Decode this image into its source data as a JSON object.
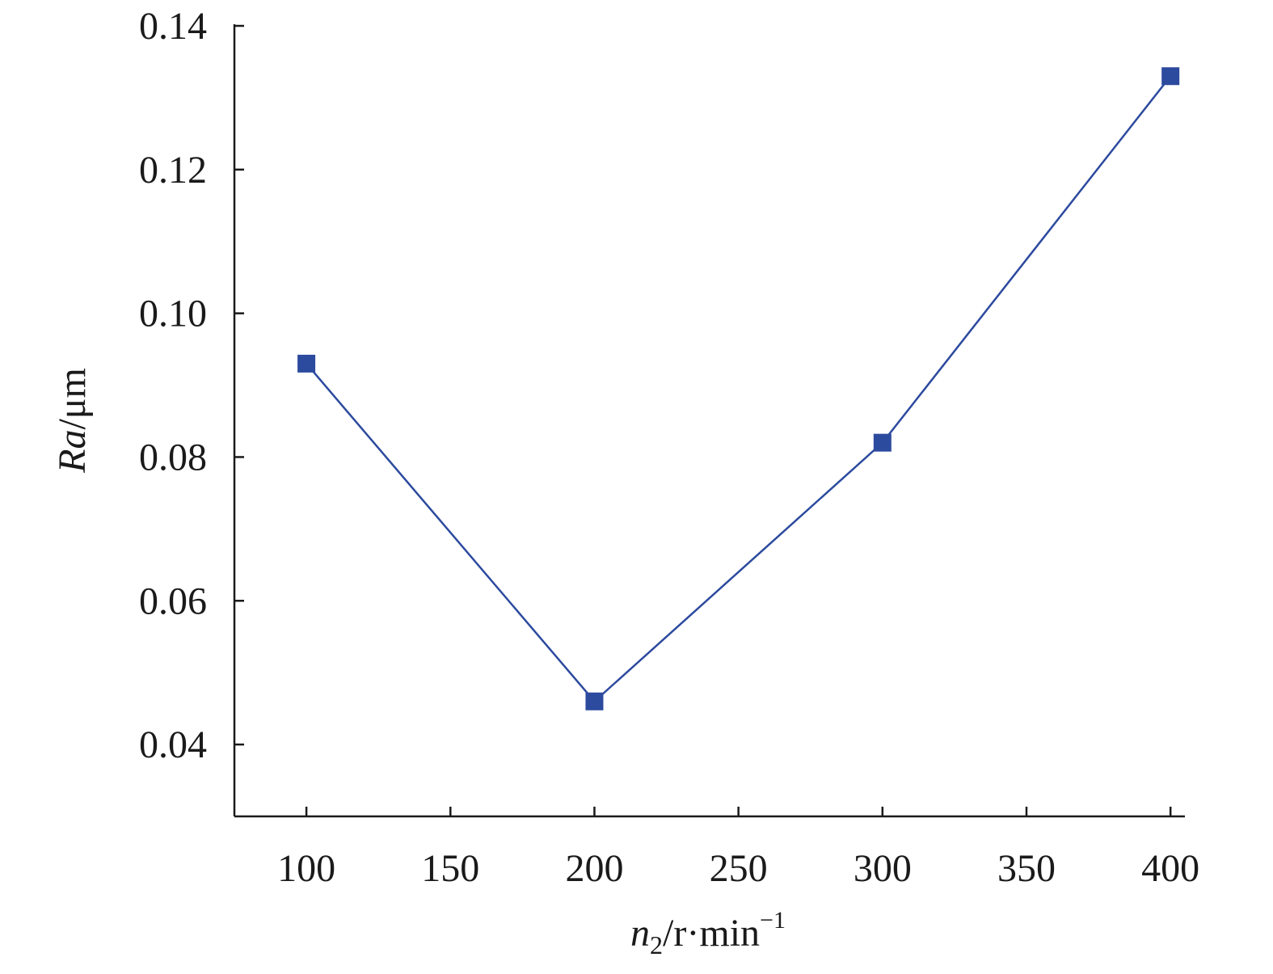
{
  "chart_data": {
    "type": "line",
    "title": "",
    "x_axis": {
      "label_main": "n",
      "label_sub": "2",
      "label_unit": "/r·min",
      "label_sup": "−1",
      "range": [
        75,
        405
      ],
      "ticks": [
        100,
        150,
        200,
        250,
        300,
        350,
        400
      ],
      "tick_labels": [
        "100",
        "150",
        "200",
        "250",
        "300",
        "350",
        "400"
      ]
    },
    "y_axis": {
      "label_italic": "Ra",
      "label_unit": "/μm",
      "range": [
        0.03,
        0.14
      ],
      "ticks": [
        0.04,
        0.06,
        0.08,
        0.1,
        0.12,
        0.14
      ],
      "tick_labels": [
        "0.04",
        "0.06",
        "0.08",
        "0.10",
        "0.12",
        "0.14"
      ]
    },
    "grid": false,
    "series": [
      {
        "marker": "square",
        "color": "#2c4a9e",
        "x": [
          100,
          200,
          300,
          400
        ],
        "y": [
          0.093,
          0.046,
          0.082,
          0.133
        ]
      }
    ]
  }
}
